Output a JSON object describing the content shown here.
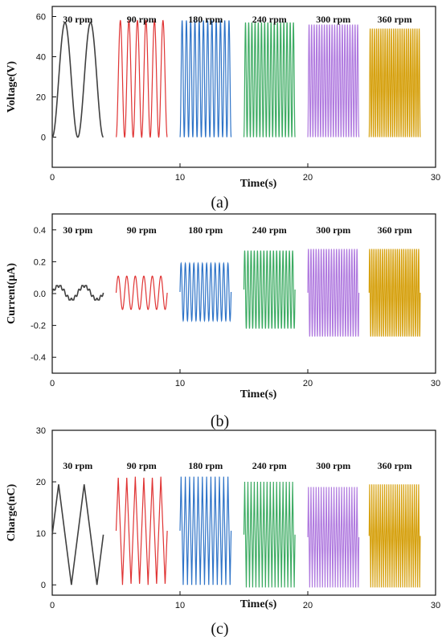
{
  "chart_data": [
    {
      "type": "line",
      "panel_label": "(a)",
      "xlabel": "Time(s)",
      "ylabel": "Voltage(V)",
      "xlim": [
        0,
        30
      ],
      "ylim": [
        -15,
        65
      ],
      "xticks": [
        0,
        10,
        20,
        30
      ],
      "yticks": [
        0,
        20,
        40,
        60
      ],
      "grid": false,
      "series": [
        {
          "name": "30 rpm",
          "color": "#404040",
          "x_range": [
            0,
            4
          ],
          "cycles": 2,
          "min": 0,
          "max": 57
        },
        {
          "name": "90 rpm",
          "color": "#e03434",
          "x_range": [
            5,
            9
          ],
          "cycles": 6,
          "min": 0,
          "max": 58
        },
        {
          "name": "180 rpm",
          "color": "#2f74c8",
          "x_range": [
            10,
            14
          ],
          "cycles": 12,
          "min": 0,
          "max": 58
        },
        {
          "name": "240 rpm",
          "color": "#3cab62",
          "x_range": [
            15,
            19
          ],
          "cycles": 16,
          "min": 0,
          "max": 57
        },
        {
          "name": "300 rpm",
          "color": "#b07adf",
          "x_range": [
            20,
            24
          ],
          "cycles": 20,
          "min": 0,
          "max": 56
        },
        {
          "name": "360 rpm",
          "color": "#d6a10f",
          "x_range": [
            24.8,
            28.8
          ],
          "cycles": 24,
          "min": 0,
          "max": 54
        }
      ]
    },
    {
      "type": "line",
      "panel_label": "(b)",
      "xlabel": "Time(s)",
      "ylabel": "Current(μA)",
      "xlim": [
        0,
        30
      ],
      "ylim": [
        -0.5,
        0.5
      ],
      "xticks": [
        0,
        10,
        20,
        30
      ],
      "yticks": [
        -0.4,
        -0.2,
        0.0,
        0.2,
        0.4
      ],
      "ytick_labels": [
        "-0.4",
        "-0.2",
        "0.0",
        "0.2",
        "0.4"
      ],
      "grid": false,
      "series": [
        {
          "name": "30 rpm",
          "color": "#404040",
          "x_range": [
            0,
            4
          ],
          "cycles": 2,
          "min": -0.04,
          "max": 0.05
        },
        {
          "name": "90 rpm",
          "color": "#e03434",
          "x_range": [
            5,
            9
          ],
          "cycles": 6,
          "min": -0.1,
          "max": 0.11
        },
        {
          "name": "180 rpm",
          "color": "#2f74c8",
          "x_range": [
            10,
            14
          ],
          "cycles": 12,
          "min": -0.17,
          "max": 0.19
        },
        {
          "name": "240 rpm",
          "color": "#3cab62",
          "x_range": [
            15,
            19
          ],
          "cycles": 16,
          "min": -0.22,
          "max": 0.27
        },
        {
          "name": "300 rpm",
          "color": "#b07adf",
          "x_range": [
            20,
            24
          ],
          "cycles": 20,
          "min": -0.27,
          "max": 0.28
        },
        {
          "name": "360 rpm",
          "color": "#d6a10f",
          "x_range": [
            24.8,
            28.8
          ],
          "cycles": 24,
          "min": -0.27,
          "max": 0.28
        }
      ]
    },
    {
      "type": "line",
      "panel_label": "(c)",
      "xlabel": "Time(s)",
      "ylabel": "Charge(nC)",
      "xlim": [
        0,
        30
      ],
      "ylim": [
        -2,
        30
      ],
      "xticks": [
        0,
        10,
        20,
        30
      ],
      "yticks": [
        0,
        10,
        20,
        30
      ],
      "grid": false,
      "series": [
        {
          "name": "30 rpm",
          "color": "#404040",
          "x_range": [
            0,
            4
          ],
          "cycles": 2,
          "min": 0,
          "max": 19.5
        },
        {
          "name": "90 rpm",
          "color": "#e03434",
          "x_range": [
            5,
            9
          ],
          "cycles": 6,
          "min": 0,
          "max": 21
        },
        {
          "name": "180 rpm",
          "color": "#2f74c8",
          "x_range": [
            10,
            14
          ],
          "cycles": 12,
          "min": 0,
          "max": 21
        },
        {
          "name": "240 rpm",
          "color": "#3cab62",
          "x_range": [
            15,
            19
          ],
          "cycles": 16,
          "min": -0.5,
          "max": 20
        },
        {
          "name": "300 rpm",
          "color": "#b07adf",
          "x_range": [
            20,
            24
          ],
          "cycles": 20,
          "min": -0.5,
          "max": 19
        },
        {
          "name": "360 rpm",
          "color": "#d6a10f",
          "x_range": [
            24.8,
            28.8
          ],
          "cycles": 24,
          "min": -0.5,
          "max": 19.5
        }
      ]
    }
  ]
}
